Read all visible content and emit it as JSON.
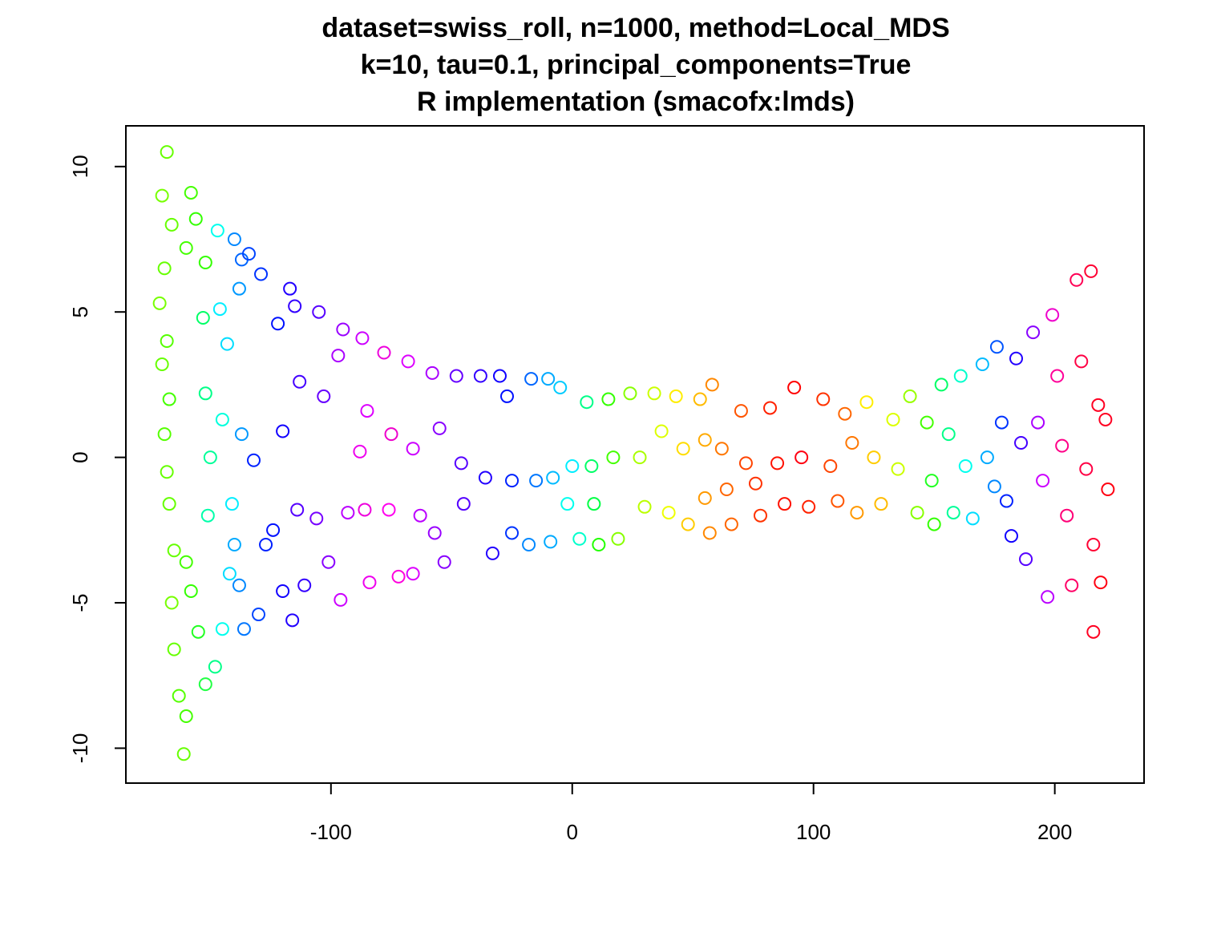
{
  "chart_data": {
    "type": "scatter",
    "title_lines": [
      "dataset=swiss_roll, n=1000, method=Local_MDS",
      "k=10, tau=0.1, principal_components=True",
      "R implementation (smacofx:lmds)"
    ],
    "xlabel": "",
    "ylabel": "",
    "xlim": [
      -185,
      237
    ],
    "ylim": [
      -11.2,
      11.4
    ],
    "x_ticks": [
      -100,
      0,
      100,
      200
    ],
    "x_tick_labels": [
      "-100",
      "0",
      "100",
      "200"
    ],
    "y_ticks": [
      -10,
      -5,
      0,
      5,
      10
    ],
    "y_tick_labels": [
      "-10",
      "-5",
      "0",
      "5",
      "10"
    ],
    "grid": false,
    "legend": "none",
    "marker": "open-circle",
    "color_encoding": "rainbow hue along the manifold",
    "points_estimated": [
      {
        "x": -168,
        "y": 10.5,
        "c": "#66ff00"
      },
      {
        "x": -170,
        "y": 9.0,
        "c": "#77ff00"
      },
      {
        "x": -166,
        "y": 8.0,
        "c": "#66ff00"
      },
      {
        "x": -169,
        "y": 6.5,
        "c": "#66ff00"
      },
      {
        "x": -171,
        "y": 5.3,
        "c": "#77ff00"
      },
      {
        "x": -168,
        "y": 4.0,
        "c": "#55ff00"
      },
      {
        "x": -170,
        "y": 3.2,
        "c": "#66ff00"
      },
      {
        "x": -167,
        "y": 2.0,
        "c": "#44ff00"
      },
      {
        "x": -169,
        "y": 0.8,
        "c": "#55ff00"
      },
      {
        "x": -168,
        "y": -0.5,
        "c": "#66ff00"
      },
      {
        "x": -167,
        "y": -1.6,
        "c": "#66ff00"
      },
      {
        "x": -165,
        "y": -3.2,
        "c": "#66ff00"
      },
      {
        "x": -166,
        "y": -5.0,
        "c": "#77ff00"
      },
      {
        "x": -165,
        "y": -6.6,
        "c": "#66ff00"
      },
      {
        "x": -163,
        "y": -8.2,
        "c": "#55ff00"
      },
      {
        "x": -161,
        "y": -10.2,
        "c": "#66ff00"
      },
      {
        "x": -160,
        "y": -8.9,
        "c": "#44ff00"
      },
      {
        "x": -158,
        "y": 9.1,
        "c": "#44ff00"
      },
      {
        "x": -156,
        "y": 8.2,
        "c": "#33ff00"
      },
      {
        "x": -160,
        "y": 7.2,
        "c": "#44ff00"
      },
      {
        "x": -152,
        "y": 6.7,
        "c": "#33ff00"
      },
      {
        "x": -160,
        "y": -3.6,
        "c": "#44ff00"
      },
      {
        "x": -158,
        "y": -4.6,
        "c": "#33ff00"
      },
      {
        "x": -155,
        "y": -6.0,
        "c": "#22ff22"
      },
      {
        "x": -152,
        "y": -7.8,
        "c": "#22ff44"
      },
      {
        "x": -148,
        "y": -7.2,
        "c": "#00ff88"
      },
      {
        "x": -153,
        "y": 4.8,
        "c": "#00ff66"
      },
      {
        "x": -152,
        "y": 2.2,
        "c": "#00ff88"
      },
      {
        "x": -150,
        "y": 0.0,
        "c": "#00ff99"
      },
      {
        "x": -151,
        "y": -2.0,
        "c": "#00ffaa"
      },
      {
        "x": -147,
        "y": 7.8,
        "c": "#00ffee"
      },
      {
        "x": -146,
        "y": 5.1,
        "c": "#00eeff"
      },
      {
        "x": -143,
        "y": 3.9,
        "c": "#00ddff"
      },
      {
        "x": -145,
        "y": 1.3,
        "c": "#00ffdd"
      },
      {
        "x": -141,
        "y": -1.6,
        "c": "#00eeff"
      },
      {
        "x": -142,
        "y": -4.0,
        "c": "#00ddff"
      },
      {
        "x": -145,
        "y": -5.9,
        "c": "#00ffee"
      },
      {
        "x": -140,
        "y": 7.5,
        "c": "#0088ff"
      },
      {
        "x": -137,
        "y": 6.8,
        "c": "#0066ff"
      },
      {
        "x": -138,
        "y": 5.8,
        "c": "#0099ff"
      },
      {
        "x": -137,
        "y": 0.8,
        "c": "#0099ff"
      },
      {
        "x": -140,
        "y": -3.0,
        "c": "#00aaff"
      },
      {
        "x": -138,
        "y": -4.4,
        "c": "#0088ff"
      },
      {
        "x": -136,
        "y": -5.9,
        "c": "#0077ff"
      },
      {
        "x": -134,
        "y": 7.0,
        "c": "#0044ff"
      },
      {
        "x": -129,
        "y": 6.3,
        "c": "#0033ff"
      },
      {
        "x": -132,
        "y": -0.1,
        "c": "#0022ff"
      },
      {
        "x": -127,
        "y": -3.0,
        "c": "#0022ff"
      },
      {
        "x": -130,
        "y": -5.4,
        "c": "#0044ff"
      },
      {
        "x": -122,
        "y": 4.6,
        "c": "#0011ff"
      },
      {
        "x": -120,
        "y": 0.9,
        "c": "#1100ff"
      },
      {
        "x": -124,
        "y": -2.5,
        "c": "#0011ff"
      },
      {
        "x": -120,
        "y": -4.6,
        "c": "#1100ff"
      },
      {
        "x": -117,
        "y": 5.8,
        "c": "#2200ff"
      },
      {
        "x": -115,
        "y": 5.2,
        "c": "#3300ff"
      },
      {
        "x": -113,
        "y": 2.6,
        "c": "#4400ff"
      },
      {
        "x": -114,
        "y": -1.8,
        "c": "#5500ff"
      },
      {
        "x": -111,
        "y": -4.4,
        "c": "#3300ff"
      },
      {
        "x": -116,
        "y": -5.6,
        "c": "#2200ff"
      },
      {
        "x": -105,
        "y": 5.0,
        "c": "#5500ff"
      },
      {
        "x": -103,
        "y": 2.1,
        "c": "#6600ff"
      },
      {
        "x": -106,
        "y": -2.1,
        "c": "#7700ff"
      },
      {
        "x": -101,
        "y": -3.6,
        "c": "#8800ff"
      },
      {
        "x": -95,
        "y": 4.4,
        "c": "#9900ff"
      },
      {
        "x": -97,
        "y": 3.5,
        "c": "#aa00ff"
      },
      {
        "x": -93,
        "y": -1.9,
        "c": "#bb00ff"
      },
      {
        "x": -96,
        "y": -4.9,
        "c": "#cc00ff"
      },
      {
        "x": -87,
        "y": 4.1,
        "c": "#cc00ff"
      },
      {
        "x": -85,
        "y": 1.6,
        "c": "#dd00ff"
      },
      {
        "x": -88,
        "y": 0.2,
        "c": "#ee00ee"
      },
      {
        "x": -86,
        "y": -1.8,
        "c": "#ee00dd"
      },
      {
        "x": -84,
        "y": -4.3,
        "c": "#ee00ee"
      },
      {
        "x": -78,
        "y": 3.6,
        "c": "#ee00dd"
      },
      {
        "x": -75,
        "y": 0.8,
        "c": "#ee00cc"
      },
      {
        "x": -76,
        "y": -1.8,
        "c": "#ff00ee"
      },
      {
        "x": -72,
        "y": -4.1,
        "c": "#ff00dd"
      },
      {
        "x": -68,
        "y": 3.3,
        "c": "#dd00ff"
      },
      {
        "x": -66,
        "y": 0.3,
        "c": "#cc00ff"
      },
      {
        "x": -63,
        "y": -2.0,
        "c": "#bb00ff"
      },
      {
        "x": -66,
        "y": -4.0,
        "c": "#dd00ff"
      },
      {
        "x": -58,
        "y": 2.9,
        "c": "#aa00ff"
      },
      {
        "x": -55,
        "y": 1.0,
        "c": "#8800ff"
      },
      {
        "x": -57,
        "y": -2.6,
        "c": "#9900ff"
      },
      {
        "x": -53,
        "y": -3.6,
        "c": "#8800ff"
      },
      {
        "x": -48,
        "y": 2.8,
        "c": "#6600ff"
      },
      {
        "x": -46,
        "y": -0.2,
        "c": "#5500ff"
      },
      {
        "x": -45,
        "y": -1.6,
        "c": "#5500ff"
      },
      {
        "x": -38,
        "y": 2.8,
        "c": "#3300ff"
      },
      {
        "x": -36,
        "y": -0.7,
        "c": "#2200ff"
      },
      {
        "x": -33,
        "y": -3.3,
        "c": "#2200ff"
      },
      {
        "x": -30,
        "y": 2.8,
        "c": "#1100ff"
      },
      {
        "x": -27,
        "y": 2.1,
        "c": "#0011ff"
      },
      {
        "x": -25,
        "y": -0.8,
        "c": "#0022ff"
      },
      {
        "x": -25,
        "y": -2.6,
        "c": "#0033ff"
      },
      {
        "x": -17,
        "y": 2.7,
        "c": "#0066ff"
      },
      {
        "x": -15,
        "y": -0.8,
        "c": "#0077ff"
      },
      {
        "x": -18,
        "y": -3.0,
        "c": "#0088ff"
      },
      {
        "x": -10,
        "y": 2.7,
        "c": "#00aaff"
      },
      {
        "x": -8,
        "y": -0.7,
        "c": "#00bbff"
      },
      {
        "x": -9,
        "y": -2.9,
        "c": "#00aaff"
      },
      {
        "x": -5,
        "y": 2.4,
        "c": "#00ccff"
      },
      {
        "x": 0,
        "y": -0.3,
        "c": "#00eeff"
      },
      {
        "x": -2,
        "y": -1.6,
        "c": "#00ffee"
      },
      {
        "x": 3,
        "y": -2.8,
        "c": "#00ffcc"
      },
      {
        "x": 6,
        "y": 1.9,
        "c": "#00ff88"
      },
      {
        "x": 8,
        "y": -0.3,
        "c": "#00ff66"
      },
      {
        "x": 9,
        "y": -1.6,
        "c": "#00ff44"
      },
      {
        "x": 11,
        "y": -3.0,
        "c": "#22ff00"
      },
      {
        "x": 15,
        "y": 2.0,
        "c": "#33ff00"
      },
      {
        "x": 17,
        "y": 0.0,
        "c": "#44ff00"
      },
      {
        "x": 19,
        "y": -2.8,
        "c": "#88ff00"
      },
      {
        "x": 24,
        "y": 2.2,
        "c": "#88ff00"
      },
      {
        "x": 28,
        "y": 0.0,
        "c": "#aaff00"
      },
      {
        "x": 30,
        "y": -1.7,
        "c": "#bbff00"
      },
      {
        "x": 34,
        "y": 2.2,
        "c": "#ccff00"
      },
      {
        "x": 37,
        "y": 0.9,
        "c": "#ddff00"
      },
      {
        "x": 40,
        "y": -1.9,
        "c": "#eeff00"
      },
      {
        "x": 43,
        "y": 2.1,
        "c": "#ffee00"
      },
      {
        "x": 46,
        "y": 0.3,
        "c": "#ffdd00"
      },
      {
        "x": 48,
        "y": -2.3,
        "c": "#ffcc00"
      },
      {
        "x": 53,
        "y": 2.0,
        "c": "#ffbb00"
      },
      {
        "x": 55,
        "y": 0.6,
        "c": "#ffaa00"
      },
      {
        "x": 55,
        "y": -1.4,
        "c": "#ff9900"
      },
      {
        "x": 57,
        "y": -2.6,
        "c": "#ff8800"
      },
      {
        "x": 58,
        "y": 2.5,
        "c": "#ff8800"
      },
      {
        "x": 62,
        "y": 0.3,
        "c": "#ff7700"
      },
      {
        "x": 64,
        "y": -1.1,
        "c": "#ff6600"
      },
      {
        "x": 66,
        "y": -2.3,
        "c": "#ff6600"
      },
      {
        "x": 70,
        "y": 1.6,
        "c": "#ff5500"
      },
      {
        "x": 72,
        "y": -0.2,
        "c": "#ff4400"
      },
      {
        "x": 76,
        "y": -0.9,
        "c": "#ff3300"
      },
      {
        "x": 78,
        "y": -2.0,
        "c": "#ff3300"
      },
      {
        "x": 82,
        "y": 1.7,
        "c": "#ff2200"
      },
      {
        "x": 85,
        "y": -0.2,
        "c": "#ff1100"
      },
      {
        "x": 88,
        "y": -1.6,
        "c": "#ff1100"
      },
      {
        "x": 92,
        "y": 2.4,
        "c": "#ff0000"
      },
      {
        "x": 95,
        "y": 0.0,
        "c": "#ff0011"
      },
      {
        "x": 98,
        "y": -1.7,
        "c": "#ff2200"
      },
      {
        "x": 104,
        "y": 2.0,
        "c": "#ff3300"
      },
      {
        "x": 107,
        "y": -0.3,
        "c": "#ff4400"
      },
      {
        "x": 110,
        "y": -1.5,
        "c": "#ff5500"
      },
      {
        "x": 113,
        "y": 1.5,
        "c": "#ff6600"
      },
      {
        "x": 116,
        "y": 0.5,
        "c": "#ff7700"
      },
      {
        "x": 118,
        "y": -1.9,
        "c": "#ff9900"
      },
      {
        "x": 122,
        "y": 1.9,
        "c": "#ffee00"
      },
      {
        "x": 125,
        "y": 0.0,
        "c": "#ffcc00"
      },
      {
        "x": 128,
        "y": -1.6,
        "c": "#ffbb00"
      },
      {
        "x": 133,
        "y": 1.3,
        "c": "#ddff00"
      },
      {
        "x": 135,
        "y": -0.4,
        "c": "#ccff00"
      },
      {
        "x": 140,
        "y": 2.1,
        "c": "#99ff00"
      },
      {
        "x": 143,
        "y": -1.9,
        "c": "#88ff00"
      },
      {
        "x": 147,
        "y": 1.2,
        "c": "#44ff00"
      },
      {
        "x": 149,
        "y": -0.8,
        "c": "#22ff22"
      },
      {
        "x": 150,
        "y": -2.3,
        "c": "#33ff00"
      },
      {
        "x": 153,
        "y": 2.5,
        "c": "#00ff66"
      },
      {
        "x": 156,
        "y": 0.8,
        "c": "#00ff88"
      },
      {
        "x": 158,
        "y": -1.9,
        "c": "#00ff99"
      },
      {
        "x": 161,
        "y": 2.8,
        "c": "#00ffcc"
      },
      {
        "x": 163,
        "y": -0.3,
        "c": "#00ffee"
      },
      {
        "x": 166,
        "y": -2.1,
        "c": "#00ddff"
      },
      {
        "x": 170,
        "y": 3.2,
        "c": "#00bbff"
      },
      {
        "x": 172,
        "y": 0.0,
        "c": "#00aaff"
      },
      {
        "x": 175,
        "y": -1.0,
        "c": "#0088ff"
      },
      {
        "x": 176,
        "y": 3.8,
        "c": "#0055ff"
      },
      {
        "x": 178,
        "y": 1.2,
        "c": "#0033ff"
      },
      {
        "x": 180,
        "y": -1.5,
        "c": "#0022ff"
      },
      {
        "x": 182,
        "y": -2.7,
        "c": "#1100ff"
      },
      {
        "x": 184,
        "y": 3.4,
        "c": "#2200ff"
      },
      {
        "x": 186,
        "y": 0.5,
        "c": "#4400ff"
      },
      {
        "x": 188,
        "y": -3.5,
        "c": "#5500ff"
      },
      {
        "x": 191,
        "y": 4.3,
        "c": "#8800ff"
      },
      {
        "x": 193,
        "y": 1.2,
        "c": "#aa00ff"
      },
      {
        "x": 195,
        "y": -0.8,
        "c": "#cc00ff"
      },
      {
        "x": 197,
        "y": -4.8,
        "c": "#bb00ff"
      },
      {
        "x": 199,
        "y": 4.9,
        "c": "#ee00cc"
      },
      {
        "x": 201,
        "y": 2.8,
        "c": "#ff0099"
      },
      {
        "x": 203,
        "y": 0.4,
        "c": "#ff0088"
      },
      {
        "x": 205,
        "y": -2.0,
        "c": "#ff0077"
      },
      {
        "x": 207,
        "y": -4.4,
        "c": "#ff0066"
      },
      {
        "x": 209,
        "y": 6.1,
        "c": "#ff0055"
      },
      {
        "x": 211,
        "y": 3.3,
        "c": "#ff0044"
      },
      {
        "x": 213,
        "y": -0.4,
        "c": "#ff0044"
      },
      {
        "x": 215,
        "y": 6.4,
        "c": "#ff0033"
      },
      {
        "x": 216,
        "y": -3.0,
        "c": "#ff0033"
      },
      {
        "x": 216,
        "y": -6.0,
        "c": "#ff0022"
      },
      {
        "x": 218,
        "y": 1.8,
        "c": "#ff0022"
      },
      {
        "x": 219,
        "y": -4.3,
        "c": "#ff0011"
      },
      {
        "x": 221,
        "y": 1.3,
        "c": "#ff0022"
      },
      {
        "x": 222,
        "y": -1.1,
        "c": "#ff0011"
      }
    ]
  }
}
